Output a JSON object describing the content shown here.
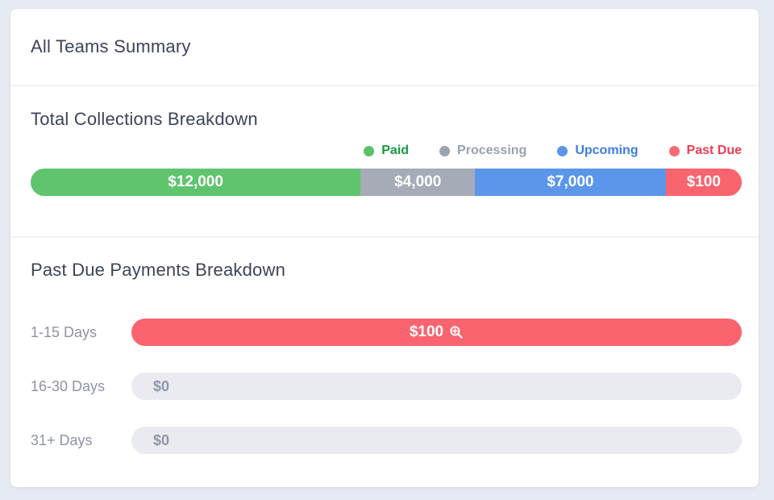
{
  "page": {
    "background": "#e6eaf2"
  },
  "header": {
    "title": "All Teams Summary"
  },
  "collections": {
    "title": "Total Collections Breakdown",
    "legend": [
      {
        "label": "Paid",
        "dot_color": "#57c069",
        "text_color": "#159b3f"
      },
      {
        "label": "Processing",
        "dot_color": "#9ba3b4",
        "text_color": "#98a0b0"
      },
      {
        "label": "Upcoming",
        "dot_color": "#5b96ea",
        "text_color": "#3d7de0"
      },
      {
        "label": "Past Due",
        "dot_color": "#f96b72",
        "text_color": "#ee3d56"
      }
    ],
    "segments": [
      {
        "name": "Paid",
        "amount": "$12,000",
        "value": 12000,
        "color": "#5fc46d",
        "width_pct": 46.4
      },
      {
        "name": "Processing",
        "amount": "$4,000",
        "value": 4000,
        "color": "#a5acb8",
        "width_pct": 16.1
      },
      {
        "name": "Upcoming",
        "amount": "$7,000",
        "value": 7000,
        "color": "#5b96ea",
        "width_pct": 26.8
      },
      {
        "name": "Past Due",
        "amount": "$100",
        "value": 100,
        "color": "#f9646f",
        "width_pct": 10.7
      }
    ]
  },
  "past_due": {
    "title": "Past Due Payments Breakdown",
    "filled_color": "#f9646f",
    "empty_color": "#e9ebf0",
    "rows": [
      {
        "label": "1-15 Days",
        "amount": "$100",
        "value": 100,
        "filled": true,
        "icon": "zoom-in"
      },
      {
        "label": "16-30 Days",
        "amount": "$0",
        "value": 0,
        "filled": false
      },
      {
        "label": "31+ Days",
        "amount": "$0",
        "value": 0,
        "filled": false
      }
    ]
  },
  "chart_data": [
    {
      "type": "bar",
      "layout": "stacked-horizontal",
      "title": "Total Collections Breakdown",
      "categories": [
        "Paid",
        "Processing",
        "Upcoming",
        "Past Due"
      ],
      "values": [
        12000,
        4000,
        7000,
        100
      ],
      "data_labels": [
        "$12,000",
        "$4,000",
        "$7,000",
        "$100"
      ],
      "colors": [
        "#5fc46d",
        "#a5acb8",
        "#5b96ea",
        "#f9646f"
      ],
      "legend_position": "top-right"
    },
    {
      "type": "bar",
      "layout": "horizontal",
      "title": "Past Due Payments Breakdown",
      "categories": [
        "1-15 Days",
        "16-30 Days",
        "31+ Days"
      ],
      "values": [
        100,
        0,
        0
      ],
      "data_labels": [
        "$100",
        "$0",
        "$0"
      ],
      "colors": [
        "#f9646f",
        "#e9ebf0",
        "#e9ebf0"
      ]
    }
  ]
}
